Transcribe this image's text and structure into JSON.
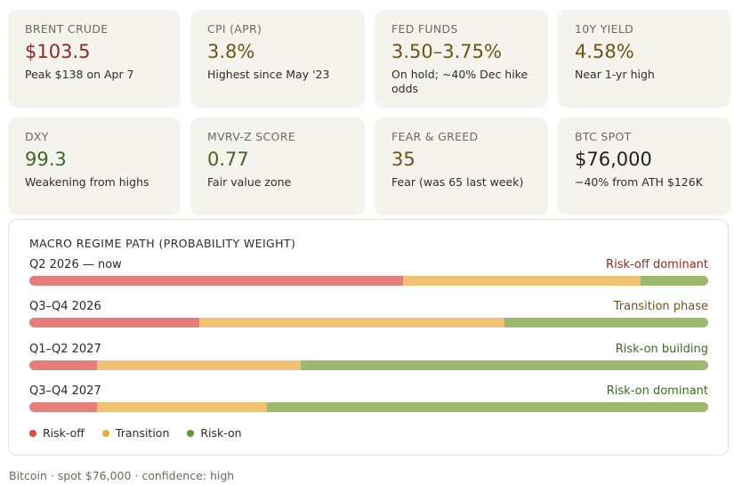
{
  "metrics": [
    {
      "label": "BRENT CRUDE",
      "value": "$103.5",
      "sub": "Peak $138 on Apr 7",
      "color": "#8b2a22"
    },
    {
      "label": "CPI (APR)",
      "value": "3.8%",
      "sub": "Highest since May '23",
      "color": "#6e5410"
    },
    {
      "label": "FED FUNDS",
      "value": "3.50–3.75%",
      "sub": "On hold; ~40% Dec hike odds",
      "color": "#6e5410"
    },
    {
      "label": "10Y YIELD",
      "value": "4.58%",
      "sub": "Near 1-yr high",
      "color": "#6e5410"
    },
    {
      "label": "DXY",
      "value": "99.3",
      "sub": "Weakening from highs",
      "color": "#3c6b1f"
    },
    {
      "label": "MVRV-Z SCORE",
      "value": "0.77",
      "sub": "Fair value zone",
      "color": "#3c6b1f"
    },
    {
      "label": "FEAR & GREED",
      "value": "35",
      "sub": "Fear (was 65 last week)",
      "color": "#6e5410"
    },
    {
      "label": "BTC SPOT",
      "value": "$76,000",
      "sub": "−40% from ATH $126K",
      "color": "#1f1f1f"
    }
  ],
  "chart_data": {
    "type": "bar",
    "title": "MACRO REGIME PATH (PROBABILITY WEIGHT)",
    "stacked": true,
    "orientation": "horizontal",
    "categories": [
      "Q2 2026 — now",
      "Q3–Q4 2026",
      "Q1–Q2 2027",
      "Q3–Q4 2027"
    ],
    "status_labels": [
      "Risk-off dominant",
      "Transition phase",
      "Risk-on building",
      "Risk-on dominant"
    ],
    "status_colors": [
      "#8b2a22",
      "#6e5410",
      "#3c6b1f",
      "#3c6b1f"
    ],
    "series": [
      {
        "name": "Risk-off",
        "color": "#e57f7b",
        "values": [
          55,
          25,
          10,
          10
        ]
      },
      {
        "name": "Transition",
        "color": "#f1c273",
        "values": [
          35,
          45,
          30,
          25
        ]
      },
      {
        "name": "Risk-on",
        "color": "#9abb6e",
        "values": [
          10,
          30,
          60,
          65
        ]
      }
    ],
    "legend_colors": [
      "#d94b43",
      "#e8a93b",
      "#5a9a35"
    ],
    "xlim": [
      0,
      100
    ],
    "legend_position": "bottom-left"
  },
  "footer": "Bitcoin · spot $76,000 · confidence: high"
}
